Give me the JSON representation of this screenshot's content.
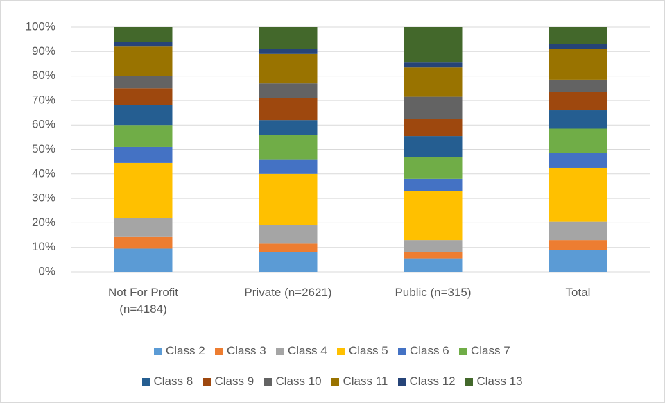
{
  "chart_data": {
    "type": "stacked_bar",
    "categories": [
      "Not For Profit (n=4184)",
      "Private (n=2621)",
      "Public (n=315)",
      "Total"
    ],
    "series": [
      {
        "name": "Class 2",
        "color": "#5b9bd5",
        "values": [
          9.5,
          8,
          5.5,
          9
        ]
      },
      {
        "name": "Class 3",
        "color": "#ed7d31",
        "values": [
          5,
          3.5,
          2.5,
          4
        ]
      },
      {
        "name": "Class 4",
        "color": "#a5a5a5",
        "values": [
          7.5,
          7.5,
          5,
          7.5
        ]
      },
      {
        "name": "Class 5",
        "color": "#ffc000",
        "values": [
          22.5,
          21,
          20,
          22
        ]
      },
      {
        "name": "Class 6",
        "color": "#4472c4",
        "values": [
          6.5,
          6,
          5,
          6
        ]
      },
      {
        "name": "Class 7",
        "color": "#70ad47",
        "values": [
          9,
          10,
          9,
          10
        ]
      },
      {
        "name": "Class 8",
        "color": "#255e91",
        "values": [
          8,
          6,
          8.5,
          7.5
        ]
      },
      {
        "name": "Class 9",
        "color": "#9e480e",
        "values": [
          7,
          9,
          7,
          7.5
        ]
      },
      {
        "name": "Class 10",
        "color": "#636363",
        "values": [
          5,
          6,
          9,
          5
        ]
      },
      {
        "name": "Class 11",
        "color": "#997300",
        "values": [
          12,
          12,
          12,
          12.5
        ]
      },
      {
        "name": "Class 12",
        "color": "#264478",
        "values": [
          2,
          2,
          2,
          2
        ]
      },
      {
        "name": "Class 13",
        "color": "#43682b",
        "values": [
          6,
          9,
          14.5,
          7
        ]
      }
    ],
    "ylim": [
      0,
      100
    ],
    "yticks": [
      {
        "value": 0,
        "label": "0%"
      },
      {
        "value": 10,
        "label": "10%"
      },
      {
        "value": 20,
        "label": "20%"
      },
      {
        "value": 30,
        "label": "30%"
      },
      {
        "value": 40,
        "label": "40%"
      },
      {
        "value": 50,
        "label": "50%"
      },
      {
        "value": 60,
        "label": "60%"
      },
      {
        "value": 70,
        "label": "70%"
      },
      {
        "value": 80,
        "label": "80%"
      },
      {
        "value": 90,
        "label": "90%"
      },
      {
        "value": 100,
        "label": "100%"
      }
    ],
    "grid": true
  }
}
